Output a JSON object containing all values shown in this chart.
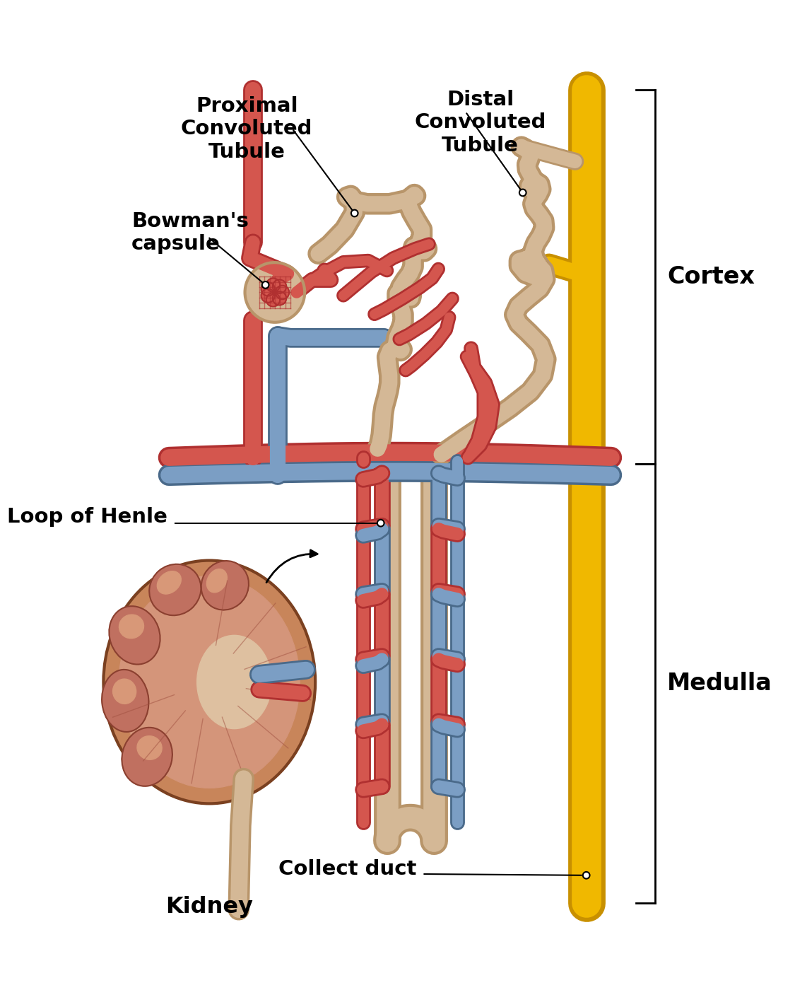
{
  "bg_color": "#ffffff",
  "red": "#D4564E",
  "red_dark": "#B03030",
  "blue": "#7B9EC4",
  "blue_dark": "#4A6A8A",
  "tan": "#D4B896",
  "tan_dark": "#B8956A",
  "yellow": "#F0B800",
  "yellow_light": "#F5CC40",
  "yellow_dark": "#C89000",
  "black": "#111111",
  "kidney_outer": "#C8855A",
  "kidney_med": "#D4957A",
  "kidney_light": "#E8B090",
  "kidney_lobe": "#C07060",
  "kidney_pelvis": "#D8C0A0",
  "labels": {
    "proximal": "Proximal\nConvoluted\nTubule",
    "distal": "Distal\nConvoluted\nTubule",
    "bowman": "Bowman's\ncapsule",
    "loop": "Loop of Henle",
    "collect": "Collect duct",
    "cortex": "Cortex",
    "medulla": "Medulla",
    "kidney": "Kidney"
  },
  "fontsize": 21,
  "lw_large": 22,
  "lw_med": 16,
  "lw_small": 12
}
